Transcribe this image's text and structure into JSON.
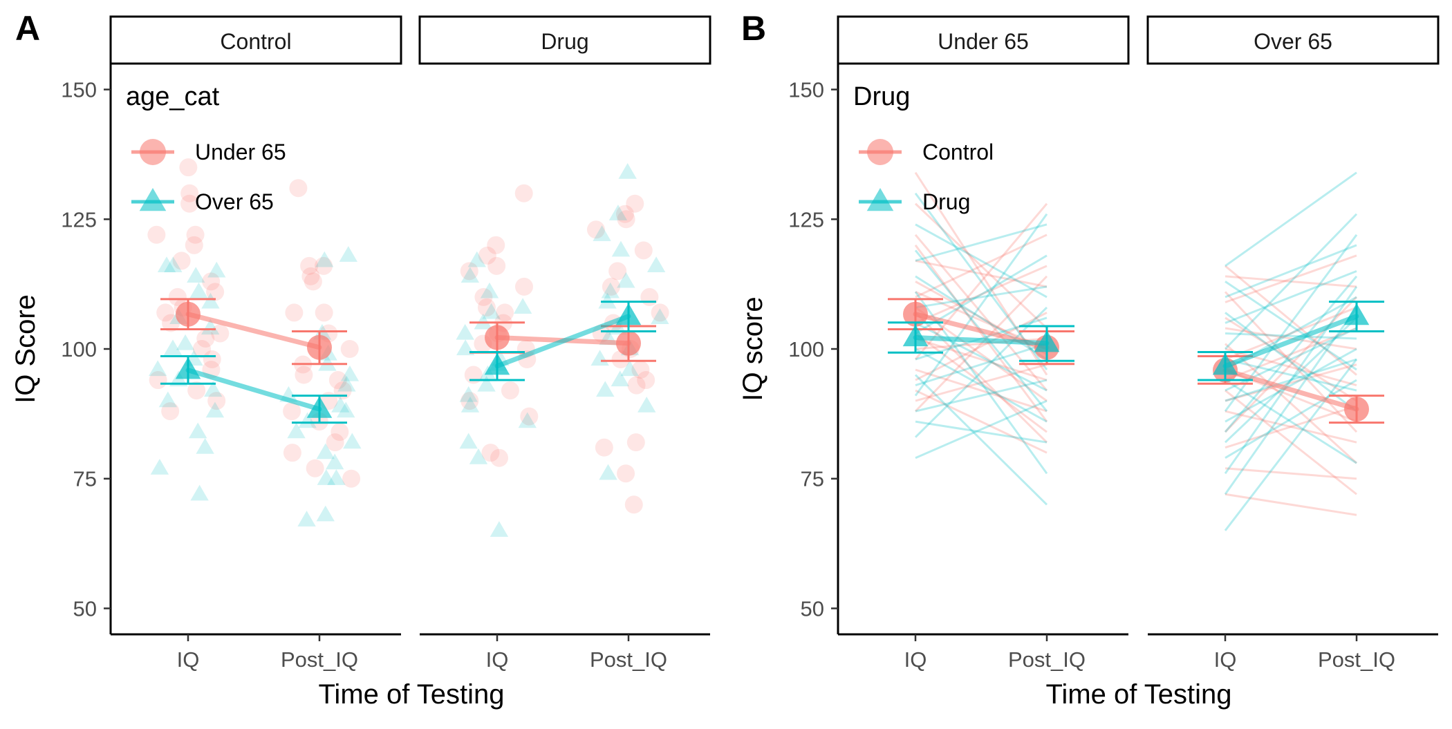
{
  "colors": {
    "under65": "#F8766D",
    "over65": "#00BFC4",
    "control": "#F8766D",
    "drug": "#00BFC4",
    "axis": "#000000",
    "tick_label": "#4D4D4D"
  },
  "chart_data": [
    {
      "panel_tag": "A",
      "type": "scatter",
      "facets": [
        "Control",
        "Drug"
      ],
      "categories": [
        "IQ",
        "Post_IQ"
      ],
      "xlabel": "Time of Testing",
      "ylabel": "IQ Score",
      "ylim": [
        45,
        155
      ],
      "yticks": [
        50,
        75,
        100,
        125,
        150
      ],
      "legend": {
        "title": "age_cat",
        "position": "top-left",
        "entries": [
          {
            "label": "Under 65",
            "shape": "circle",
            "color_key": "under65"
          },
          {
            "label": "Over 65",
            "shape": "triangle",
            "color_key": "over65"
          }
        ]
      },
      "series": [
        {
          "name": "Under 65",
          "shape": "circle",
          "color_key": "under65",
          "summary": [
            {
              "facet": "Control",
              "x": "IQ",
              "mean": 106.7,
              "lo": 103.8,
              "hi": 109.6
            },
            {
              "facet": "Control",
              "x": "Post_IQ",
              "mean": 100.3,
              "lo": 97.1,
              "hi": 103.4
            },
            {
              "facet": "Drug",
              "x": "IQ",
              "mean": 102.2,
              "lo": 99.3,
              "hi": 105.1
            },
            {
              "facet": "Drug",
              "x": "Post_IQ",
              "mean": 101.1,
              "lo": 97.7,
              "hi": 104.4
            }
          ],
          "points": [
            {
              "facet": "Control",
              "x": "IQ",
              "values": [
                135,
                130,
                128,
                122,
                120,
                122,
                117,
                113,
                110,
                108,
                105,
                103,
                100,
                98,
                96,
                94,
                92,
                90,
                88,
                102,
                107,
                111
              ]
            },
            {
              "facet": "Control",
              "x": "Post_IQ",
              "values": [
                131,
                116,
                116,
                114,
                113,
                107,
                107,
                103,
                100,
                97,
                95,
                94,
                92,
                90,
                88,
                86,
                84,
                82,
                80,
                77,
                75
              ]
            },
            {
              "facet": "Drug",
              "x": "IQ",
              "values": [
                130,
                120,
                118,
                116,
                115,
                112,
                110,
                108,
                107,
                105,
                103,
                101,
                100,
                98,
                95,
                92,
                90,
                87,
                79,
                80
              ]
            },
            {
              "facet": "Drug",
              "x": "Post_IQ",
              "values": [
                128,
                126,
                125,
                123,
                119,
                115,
                112,
                110,
                107,
                105,
                103,
                100,
                98,
                96,
                94,
                93,
                82,
                81,
                76,
                70
              ]
            }
          ]
        },
        {
          "name": "Over 65",
          "shape": "triangle",
          "color_key": "over65",
          "summary": [
            {
              "facet": "Control",
              "x": "IQ",
              "mean": 95.9,
              "lo": 93.3,
              "hi": 98.6
            },
            {
              "facet": "Control",
              "x": "Post_IQ",
              "mean": 88.4,
              "lo": 85.8,
              "hi": 91.0
            },
            {
              "facet": "Drug",
              "x": "IQ",
              "mean": 96.7,
              "lo": 94.0,
              "hi": 99.4
            },
            {
              "facet": "Drug",
              "x": "Post_IQ",
              "mean": 106.3,
              "lo": 103.4,
              "hi": 109.1
            }
          ],
          "points": [
            {
              "facet": "Control",
              "x": "IQ",
              "values": [
                116,
                116,
                115,
                114,
                111,
                109,
                106,
                104,
                101,
                100,
                98,
                96,
                94,
                92,
                90,
                88,
                84,
                81,
                77,
                72
              ]
            },
            {
              "facet": "Control",
              "x": "Post_IQ",
              "values": [
                118,
                117,
                103,
                99,
                97,
                95,
                93,
                91,
                89,
                88,
                86,
                84,
                82,
                80,
                78,
                75,
                75,
                68,
                67
              ]
            },
            {
              "facet": "Drug",
              "x": "IQ",
              "values": [
                117,
                114,
                111,
                108,
                107,
                105,
                103,
                100,
                98,
                97,
                95,
                93,
                91,
                89,
                86,
                82,
                79,
                65
              ]
            },
            {
              "facet": "Drug",
              "x": "Post_IQ",
              "values": [
                134,
                126,
                122,
                119,
                116,
                113,
                111,
                109,
                106,
                104,
                102,
                100,
                98,
                96,
                94,
                92,
                89,
                76
              ]
            }
          ]
        }
      ]
    },
    {
      "panel_tag": "B",
      "type": "line",
      "facets": [
        "Under 65",
        "Over 65"
      ],
      "categories": [
        "IQ",
        "Post_IQ"
      ],
      "xlabel": "Time of Testing",
      "ylabel": "IQ score",
      "ylim": [
        45,
        155
      ],
      "yticks": [
        50,
        75,
        100,
        125,
        150
      ],
      "legend": {
        "title": "Drug",
        "position": "top-left",
        "entries": [
          {
            "label": "Control",
            "shape": "circle",
            "color_key": "control"
          },
          {
            "label": "Drug",
            "shape": "triangle",
            "color_key": "drug"
          }
        ]
      },
      "series": [
        {
          "name": "Control",
          "shape": "circle",
          "color_key": "control",
          "summary": [
            {
              "facet": "Under 65",
              "x": "IQ",
              "mean": 106.7,
              "lo": 103.8,
              "hi": 109.6
            },
            {
              "facet": "Under 65",
              "x": "Post_IQ",
              "mean": 100.3,
              "lo": 97.1,
              "hi": 103.4
            },
            {
              "facet": "Over 65",
              "x": "IQ",
              "mean": 95.9,
              "lo": 93.3,
              "hi": 98.6
            },
            {
              "facet": "Over 65",
              "x": "Post_IQ",
              "mean": 88.4,
              "lo": 85.8,
              "hi": 91.0
            }
          ],
          "pairs": [
            {
              "facet": "Under 65",
              "values": [
                [
                  134,
                  95
                ],
                [
                  128,
                  104
                ],
                [
                  122,
                  92
                ],
                [
                  120,
                  86
                ],
                [
                  117,
                  112
                ],
                [
                  113,
                  99
                ],
                [
                  110,
                  122
                ],
                [
                  108,
                  90
                ],
                [
                  105,
                  116
                ],
                [
                  103,
                  84
                ],
                [
                  100,
                  102
                ],
                [
                  98,
                  128
                ],
                [
                  96,
                  88
                ],
                [
                  94,
                  107
                ],
                [
                  92,
                  80
                ],
                [
                  90,
                  97
                ],
                [
                  88,
                  114
                ],
                [
                  102,
                  94
                ],
                [
                  107,
                  82
                ],
                [
                  111,
                  100
                ]
              ]
            },
            {
              "facet": "Over 65",
              "values": [
                [
                  116,
                  95
                ],
                [
                  114,
                  112
                ],
                [
                  111,
                  84
                ],
                [
                  109,
                  118
                ],
                [
                  106,
                  90
                ],
                [
                  104,
                  100
                ],
                [
                  101,
                  78
                ],
                [
                  100,
                  93
                ],
                [
                  98,
                  108
                ],
                [
                  96,
                  86
                ],
                [
                  94,
                  104
                ],
                [
                  92,
                  72
                ],
                [
                  90,
                  97
                ],
                [
                  88,
                  82
                ],
                [
                  84,
                  110
                ],
                [
                  81,
                  89
                ],
                [
                  77,
                  75
                ],
                [
                  72,
                  68
                ]
              ]
            }
          ]
        },
        {
          "name": "Drug",
          "shape": "triangle",
          "color_key": "drug",
          "summary": [
            {
              "facet": "Under 65",
              "x": "IQ",
              "mean": 102.2,
              "lo": 99.3,
              "hi": 105.1
            },
            {
              "facet": "Under 65",
              "x": "Post_IQ",
              "mean": 101.1,
              "lo": 97.7,
              "hi": 104.4
            },
            {
              "facet": "Over 65",
              "x": "IQ",
              "mean": 96.7,
              "lo": 94.0,
              "hi": 99.4
            },
            {
              "facet": "Over 65",
              "x": "Post_IQ",
              "mean": 106.3,
              "lo": 103.4,
              "hi": 109.1
            }
          ],
          "pairs": [
            {
              "facet": "Under 65",
              "values": [
                [
                  130,
                  96
                ],
                [
                  124,
                  110
                ],
                [
                  119,
                  88
                ],
                [
                  117,
                  124
                ],
                [
                  114,
                  98
                ],
                [
                  111,
                  76
                ],
                [
                  108,
                  112
                ],
                [
                  105,
                  92
                ],
                [
                  103,
                  118
                ],
                [
                  100,
                  86
                ],
                [
                  98,
                  106
                ],
                [
                  95,
                  70
                ],
                [
                  93,
                  101
                ],
                [
                  91,
                  126
                ],
                [
                  88,
                  94
                ],
                [
                  86,
                  82
                ],
                [
                  83,
                  108
                ],
                [
                  79,
                  90
                ]
              ]
            },
            {
              "facet": "Over 65",
              "values": [
                [
                  116,
                  134
                ],
                [
                  113,
                  96
                ],
                [
                  110,
                  120
                ],
                [
                  107,
                  88
                ],
                [
                  105,
                  115
                ],
                [
                  103,
                  102
                ],
                [
                  100,
                  126
                ],
                [
                  98,
                  92
                ],
                [
                  96,
                  110
                ],
                [
                  94,
                  78
                ],
                [
                  92,
                  104
                ],
                [
                  90,
                  98
                ],
                [
                  88,
                  122
                ],
                [
                  86,
                  100
                ],
                [
                  84,
                  114
                ],
                [
                  82,
                  106
                ],
                [
                  79,
                  94
                ],
                [
                  76,
                  112
                ],
                [
                  72,
                  108
                ],
                [
                  65,
                  98
                ]
              ]
            }
          ]
        }
      ]
    }
  ]
}
